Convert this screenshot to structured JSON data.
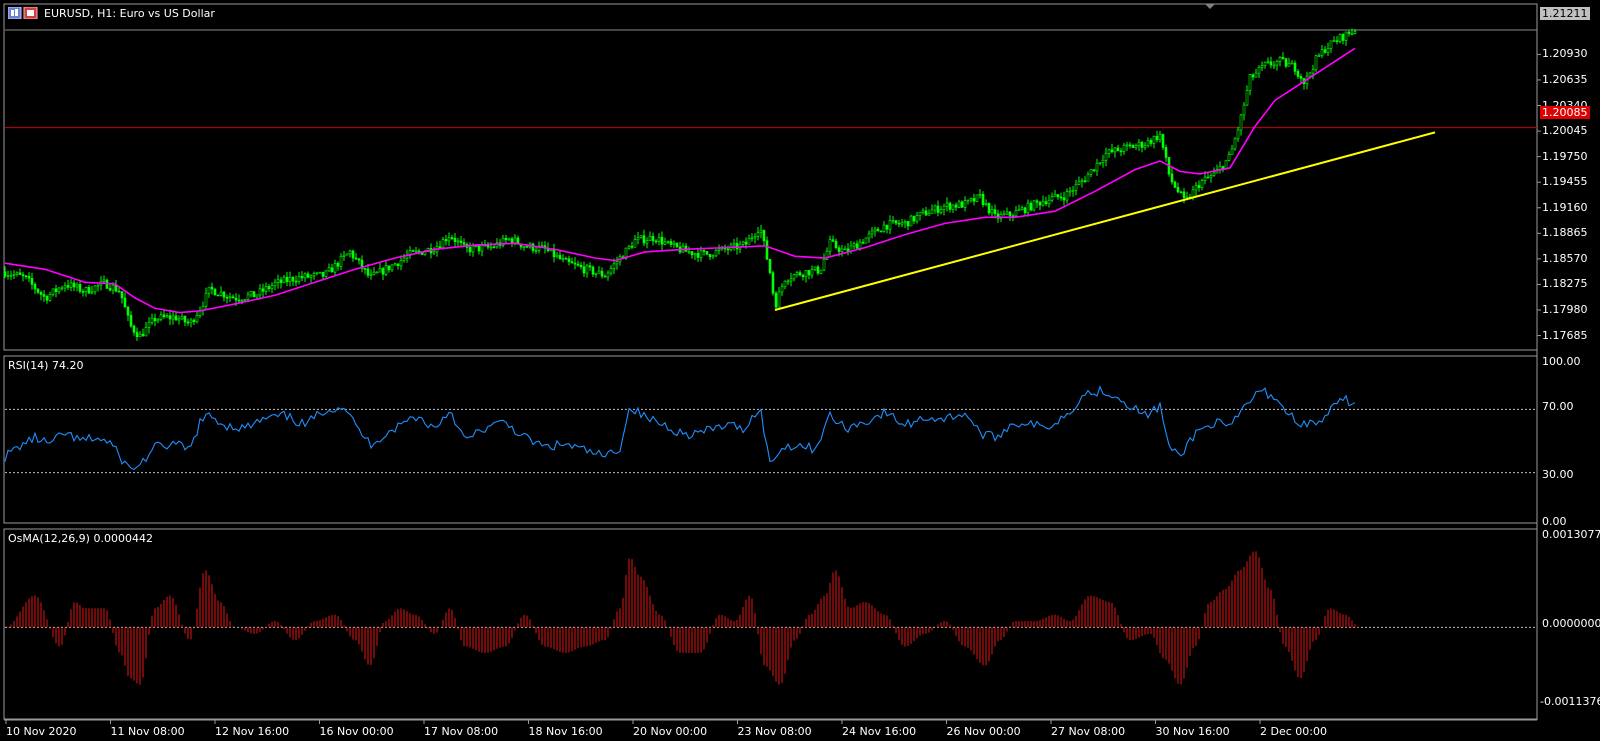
{
  "header": {
    "title": "EURUSD, H1:  Euro vs US Dollar",
    "icon": "chart-window-icon"
  },
  "price_axis": {
    "labels": [
      "1.20930",
      "1.20635",
      "1.20340",
      "1.20045",
      "1.19750",
      "1.19455",
      "1.19160",
      "1.18865",
      "1.18570",
      "1.18275",
      "1.17980",
      "1.17685"
    ],
    "current_price": "1.21211",
    "hline_price": "1.20085",
    "current_price_bg": "#c0c0c0",
    "hline_color": "#d00000"
  },
  "rsi": {
    "label": "RSI(14) 74.20",
    "levels": [
      "100.00",
      "70.00",
      "30.00",
      "0.00"
    ],
    "color": "#1e90ff"
  },
  "osma": {
    "label": "OsMA(12,26,9) 0.0000442",
    "levels": [
      "0.0013077",
      "0.0000000",
      "-0.0011376"
    ],
    "color": "#c01010"
  },
  "time_axis": {
    "labels": [
      "10 Nov 2020",
      "11 Nov 08:00",
      "12 Nov 16:00",
      "16 Nov 00:00",
      "17 Nov 08:00",
      "18 Nov 16:00",
      "20 Nov 00:00",
      "23 Nov 08:00",
      "24 Nov 16:00",
      "26 Nov 00:00",
      "27 Nov 08:00",
      "30 Nov 16:00",
      "2 Dec 00:00"
    ]
  },
  "chart_data": [
    {
      "type": "candlestick",
      "symbol": "EURUSD",
      "timeframe": "H1",
      "ylim": [
        1.1753,
        1.215
      ],
      "candle_color": "#00ff00",
      "ma_color": "#ff00ff",
      "trendline_color": "#ffff00",
      "close_path": [
        [
          0,
          1.1842
        ],
        [
          20,
          1.1835
        ],
        [
          40,
          1.1812
        ],
        [
          60,
          1.1828
        ],
        [
          80,
          1.182
        ],
        [
          100,
          1.1829
        ],
        [
          115,
          1.182
        ],
        [
          125,
          1.178
        ],
        [
          135,
          1.1768
        ],
        [
          150,
          1.1788
        ],
        [
          170,
          1.179
        ],
        [
          185,
          1.1782
        ],
        [
          195,
          1.18
        ],
        [
          205,
          1.1822
        ],
        [
          230,
          1.1812
        ],
        [
          250,
          1.1815
        ],
        [
          270,
          1.1828
        ],
        [
          290,
          1.1835
        ],
        [
          320,
          1.1838
        ],
        [
          345,
          1.1865
        ],
        [
          365,
          1.1835
        ],
        [
          385,
          1.1848
        ],
        [
          405,
          1.1862
        ],
        [
          430,
          1.187
        ],
        [
          445,
          1.1885
        ],
        [
          460,
          1.1868
        ],
        [
          485,
          1.187
        ],
        [
          505,
          1.188
        ],
        [
          520,
          1.1872
        ],
        [
          540,
          1.1868
        ],
        [
          560,
          1.1853
        ],
        [
          580,
          1.1845
        ],
        [
          600,
          1.1838
        ],
        [
          615,
          1.1858
        ],
        [
          630,
          1.1878
        ],
        [
          650,
          1.1882
        ],
        [
          665,
          1.1872
        ],
        [
          680,
          1.1866
        ],
        [
          700,
          1.1862
        ],
        [
          720,
          1.1868
        ],
        [
          740,
          1.1873
        ],
        [
          755,
          1.1895
        ],
        [
          765,
          1.1842
        ],
        [
          770,
          1.1803
        ],
        [
          780,
          1.1835
        ],
        [
          800,
          1.1842
        ],
        [
          815,
          1.1844
        ],
        [
          825,
          1.1875
        ],
        [
          840,
          1.1865
        ],
        [
          860,
          1.188
        ],
        [
          880,
          1.1896
        ],
        [
          900,
          1.1898
        ],
        [
          920,
          1.191
        ],
        [
          940,
          1.1918
        ],
        [
          960,
          1.192
        ],
        [
          975,
          1.1928
        ],
        [
          990,
          1.1905
        ],
        [
          1005,
          1.1908
        ],
        [
          1020,
          1.1915
        ],
        [
          1040,
          1.1925
        ],
        [
          1060,
          1.193
        ],
        [
          1080,
          1.195
        ],
        [
          1100,
          1.1978
        ],
        [
          1120,
          1.1985
        ],
        [
          1140,
          1.199
        ],
        [
          1155,
          1.2
        ],
        [
          1165,
          1.195
        ],
        [
          1180,
          1.1922
        ],
        [
          1195,
          1.1945
        ],
        [
          1210,
          1.1955
        ],
        [
          1225,
          1.1975
        ],
        [
          1235,
          1.2015
        ],
        [
          1245,
          1.2065
        ],
        [
          1260,
          1.208
        ],
        [
          1275,
          1.2085
        ],
        [
          1290,
          1.2078
        ],
        [
          1300,
          1.206
        ],
        [
          1310,
          1.2085
        ],
        [
          1320,
          1.21
        ],
        [
          1335,
          1.2112
        ],
        [
          1350,
          1.2121
        ]
      ],
      "ma_path": [
        [
          0,
          1.1852
        ],
        [
          40,
          1.1845
        ],
        [
          80,
          1.183
        ],
        [
          110,
          1.1828
        ],
        [
          130,
          1.1812
        ],
        [
          150,
          1.18
        ],
        [
          175,
          1.1795
        ],
        [
          195,
          1.1797
        ],
        [
          230,
          1.1805
        ],
        [
          270,
          1.1815
        ],
        [
          310,
          1.183
        ],
        [
          350,
          1.1845
        ],
        [
          390,
          1.1858
        ],
        [
          430,
          1.1868
        ],
        [
          470,
          1.1873
        ],
        [
          510,
          1.1875
        ],
        [
          550,
          1.1868
        ],
        [
          590,
          1.1858
        ],
        [
          610,
          1.1855
        ],
        [
          640,
          1.1865
        ],
        [
          680,
          1.1868
        ],
        [
          720,
          1.187
        ],
        [
          760,
          1.1872
        ],
        [
          790,
          1.186
        ],
        [
          820,
          1.1858
        ],
        [
          860,
          1.187
        ],
        [
          900,
          1.1885
        ],
        [
          940,
          1.1898
        ],
        [
          980,
          1.1905
        ],
        [
          1010,
          1.1905
        ],
        [
          1050,
          1.1912
        ],
        [
          1090,
          1.1935
        ],
        [
          1130,
          1.196
        ],
        [
          1155,
          1.197
        ],
        [
          1175,
          1.1958
        ],
        [
          1195,
          1.1955
        ],
        [
          1225,
          1.1962
        ],
        [
          1250,
          1.201
        ],
        [
          1270,
          1.204
        ],
        [
          1290,
          1.2055
        ],
        [
          1310,
          1.207
        ],
        [
          1330,
          1.2085
        ],
        [
          1350,
          1.21
        ]
      ],
      "hline": 1.20085,
      "trendline": [
        [
          775,
          1.1798
        ],
        [
          1435,
          1.2003
        ]
      ]
    },
    {
      "type": "line",
      "name": "RSI(14)",
      "ylim": [
        0,
        100
      ],
      "levels": [
        70,
        30
      ],
      "x": [
        0,
        15,
        30,
        45,
        60,
        75,
        90,
        105,
        115,
        125,
        135,
        150,
        170,
        185,
        195,
        205,
        220,
        240,
        260,
        280,
        300,
        320,
        340,
        350,
        365,
        380,
        395,
        410,
        430,
        445,
        460,
        480,
        500,
        520,
        540,
        560,
        580,
        600,
        615,
        625,
        640,
        660,
        680,
        700,
        720,
        740,
        755,
        765,
        775,
        790,
        810,
        825,
        840,
        860,
        880,
        900,
        920,
        940,
        960,
        975,
        990,
        1005,
        1020,
        1040,
        1060,
        1080,
        1100,
        1120,
        1140,
        1155,
        1165,
        1175,
        1190,
        1210,
        1225,
        1240,
        1255,
        1270,
        1285,
        1300,
        1315,
        1330,
        1340,
        1350
      ],
      "values": [
        40,
        47,
        52,
        48,
        55,
        50,
        52,
        49,
        40,
        32,
        35,
        46,
        48,
        44,
        62,
        66,
        60,
        58,
        64,
        66,
        60,
        70,
        72,
        60,
        48,
        54,
        60,
        66,
        58,
        70,
        50,
        58,
        62,
        52,
        46,
        48,
        44,
        40,
        46,
        72,
        65,
        60,
        54,
        56,
        60,
        58,
        72,
        35,
        45,
        48,
        45,
        66,
        58,
        62,
        68,
        60,
        65,
        64,
        68,
        55,
        52,
        60,
        62,
        58,
        66,
        80,
        82,
        75,
        66,
        72,
        44,
        40,
        55,
        62,
        58,
        72,
        82,
        78,
        66,
        60,
        62,
        72,
        76,
        74
      ]
    },
    {
      "type": "bar",
      "name": "OsMA(12,26,9)",
      "ylim": [
        -0.0011376,
        0.0013077
      ],
      "x": [
        0,
        30,
        55,
        70,
        80,
        100,
        115,
        125,
        135,
        150,
        165,
        185,
        200,
        215,
        230,
        250,
        270,
        290,
        310,
        330,
        350,
        365,
        380,
        395,
        410,
        430,
        445,
        460,
        480,
        500,
        520,
        540,
        560,
        580,
        600,
        615,
        625,
        635,
        655,
        675,
        695,
        715,
        730,
        745,
        760,
        775,
        790,
        805,
        820,
        830,
        845,
        860,
        880,
        900,
        920,
        940,
        960,
        980,
        995,
        1010,
        1030,
        1050,
        1065,
        1085,
        1105,
        1125,
        1145,
        1160,
        1175,
        1190,
        1205,
        1220,
        1235,
        1250,
        1265,
        1280,
        1295,
        1310,
        1325,
        1340,
        1355
      ],
      "values": [
        0.0,
        0.0005,
        -0.0003,
        0.0004,
        0.0003,
        0.0003,
        -0.0004,
        -0.0008,
        -0.0009,
        0.0003,
        0.0005,
        -0.0002,
        0.0009,
        0.0004,
        0.0,
        -0.0001,
        0.0001,
        -0.0002,
        0.0001,
        0.0002,
        -0.0002,
        -0.0006,
        0.0001,
        0.0003,
        0.0002,
        -0.0001,
        0.0003,
        -0.0003,
        -0.0004,
        -0.0003,
        0.0002,
        -0.0003,
        -0.0004,
        -0.0003,
        -0.0002,
        0.0003,
        0.0011,
        0.0008,
        0.0002,
        -0.0004,
        -0.0004,
        0.0002,
        0.0001,
        0.0005,
        -0.0006,
        -0.0009,
        -0.0002,
        0.0002,
        0.0005,
        0.0009,
        0.0003,
        0.0004,
        0.0002,
        -0.0003,
        -0.0001,
        0.0001,
        -0.0003,
        -0.0006,
        -0.0002,
        0.0001,
        0.0001,
        0.0002,
        0.0001,
        0.0005,
        0.0004,
        -0.0002,
        -0.0001,
        -0.0005,
        -0.0009,
        -0.0003,
        0.0004,
        0.0006,
        0.0009,
        0.0012,
        0.0006,
        -0.0003,
        -0.0008,
        -0.0002,
        0.0003,
        0.0002,
        0.0
      ]
    }
  ]
}
